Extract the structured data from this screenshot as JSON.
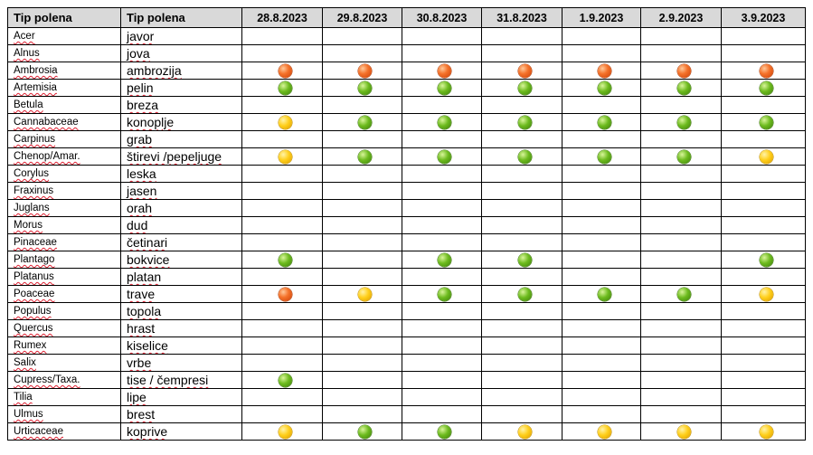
{
  "table": {
    "header_latin": "Tip polena",
    "header_local": "Tip polena",
    "dates": [
      "28.8.2023",
      "29.8.2023",
      "30.8.2023",
      "31.8.2023",
      "1.9.2023",
      "2.9.2023",
      "3.9.2023"
    ],
    "level_colors": {
      "orange": "#f5722a",
      "green": "#6dbb1e",
      "yellow": "#ffcf1a"
    },
    "rows": [
      {
        "latin": "Acer",
        "local": "javor",
        "levels": [
          "",
          "",
          "",
          "",
          "",
          "",
          ""
        ]
      },
      {
        "latin": "Alnus",
        "local": "jova",
        "levels": [
          "",
          "",
          "",
          "",
          "",
          "",
          ""
        ]
      },
      {
        "latin": "Ambrosia",
        "local": "ambrozija",
        "levels": [
          "orange",
          "orange",
          "orange",
          "orange",
          "orange",
          "orange",
          "orange"
        ]
      },
      {
        "latin": "Artemisia",
        "local": "pelin",
        "levels": [
          "green",
          "green",
          "green",
          "green",
          "green",
          "green",
          "green"
        ]
      },
      {
        "latin": "Betula",
        "local": "breza",
        "levels": [
          "",
          "",
          "",
          "",
          "",
          "",
          ""
        ]
      },
      {
        "latin": "Cannabaceae",
        "local": "konoplje",
        "levels": [
          "yellow",
          "green",
          "green",
          "green",
          "green",
          "green",
          "green"
        ]
      },
      {
        "latin": "Carpinus",
        "local": "grab",
        "levels": [
          "",
          "",
          "",
          "",
          "",
          "",
          ""
        ]
      },
      {
        "latin": "Chenop/Amar.",
        "local": "štirevi /pepeljuge",
        "levels": [
          "yellow",
          "green",
          "green",
          "green",
          "green",
          "green",
          "yellow"
        ]
      },
      {
        "latin": "Corylus",
        "local": "leska",
        "levels": [
          "",
          "",
          "",
          "",
          "",
          "",
          ""
        ]
      },
      {
        "latin": "Fraxinus",
        "local": "jasen",
        "levels": [
          "",
          "",
          "",
          "",
          "",
          "",
          ""
        ]
      },
      {
        "latin": "Juglans",
        "local": "orah",
        "levels": [
          "",
          "",
          "",
          "",
          "",
          "",
          ""
        ]
      },
      {
        "latin": "Morus",
        "local": "dud",
        "levels": [
          "",
          "",
          "",
          "",
          "",
          "",
          ""
        ]
      },
      {
        "latin": "Pinaceae",
        "local": "četinari",
        "levels": [
          "",
          "",
          "",
          "",
          "",
          "",
          ""
        ]
      },
      {
        "latin": "Plantago",
        "local": "bokvice",
        "levels": [
          "green",
          "",
          "green",
          "green",
          "",
          "",
          "green"
        ]
      },
      {
        "latin": "Platanus",
        "local": "platan",
        "levels": [
          "",
          "",
          "",
          "",
          "",
          "",
          ""
        ]
      },
      {
        "latin": "Poaceae",
        "local": "trave",
        "levels": [
          "orange",
          "yellow",
          "green",
          "green",
          "green",
          "green",
          "yellow"
        ]
      },
      {
        "latin": "Populus",
        "local": "topola",
        "levels": [
          "",
          "",
          "",
          "",
          "",
          "",
          ""
        ]
      },
      {
        "latin": "Quercus",
        "local": "hrast",
        "levels": [
          "",
          "",
          "",
          "",
          "",
          "",
          ""
        ]
      },
      {
        "latin": "Rumex",
        "local": "kiselice",
        "levels": [
          "",
          "",
          "",
          "",
          "",
          "",
          ""
        ]
      },
      {
        "latin": "Salix",
        "local": "vrbe",
        "levels": [
          "",
          "",
          "",
          "",
          "",
          "",
          ""
        ]
      },
      {
        "latin": "Cupress/Taxa.",
        "local": "tise / čempresi",
        "levels": [
          "green",
          "",
          "",
          "",
          "",
          "",
          ""
        ]
      },
      {
        "latin": "Tilia",
        "local": "lipe",
        "levels": [
          "",
          "",
          "",
          "",
          "",
          "",
          ""
        ]
      },
      {
        "latin": "Ulmus",
        "local": "brest",
        "levels": [
          "",
          "",
          "",
          "",
          "",
          "",
          ""
        ]
      },
      {
        "latin": "Urticaceae",
        "local": "koprive",
        "levels": [
          "yellow",
          "green",
          "green",
          "yellow",
          "yellow",
          "yellow",
          "yellow"
        ]
      }
    ]
  }
}
